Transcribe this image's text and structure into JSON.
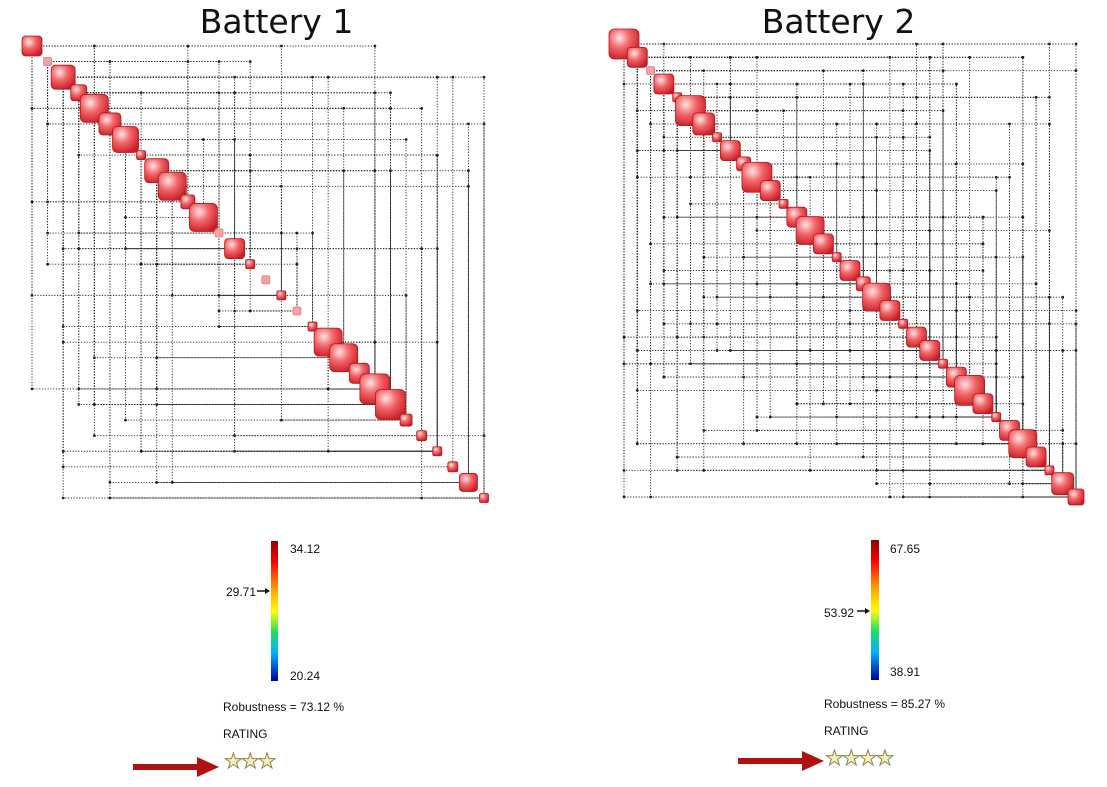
{
  "panels": [
    {
      "title": "Battery 1",
      "colorbar": {
        "max": "34.12",
        "min": "20.24",
        "marker": "29.71",
        "marker_value": 29.71,
        "max_value": 34.12,
        "min_value": 20.24
      },
      "robustness": "Robustness = 73.12 %",
      "rating_label": "RATING",
      "stars": 3,
      "highlighted": true
    },
    {
      "title": "Battery 2",
      "colorbar": {
        "max": "67.65",
        "min": "38.91",
        "marker": "53.92",
        "marker_value": 53.92,
        "max_value": 67.65,
        "min_value": 38.91
      },
      "robustness": "Robustness = 85.27 %",
      "rating_label": "RATING",
      "stars": 4,
      "highlighted": true
    }
  ],
  "colors": {
    "node": "#e8464a",
    "arrow": "#b01010",
    "star_fill": "#f7f0b4"
  }
}
